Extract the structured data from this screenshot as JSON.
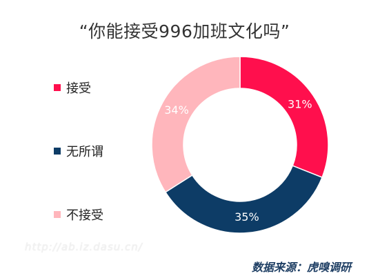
{
  "chart_data": {
    "type": "pie",
    "title": "“你能接受996加班文化吗”",
    "categories": [
      "接受",
      "无所谓",
      "不接受"
    ],
    "values": [
      31,
      35,
      34
    ],
    "labels": [
      "31%",
      "35%",
      "34%"
    ],
    "colors": [
      "#ff0f4d",
      "#0d3c66",
      "#ffb6bc"
    ],
    "donut": true,
    "legend_position": "left"
  },
  "watermark": "http://ab.iz.dasu.cn/",
  "source": "数据来源：虎嗅调研"
}
